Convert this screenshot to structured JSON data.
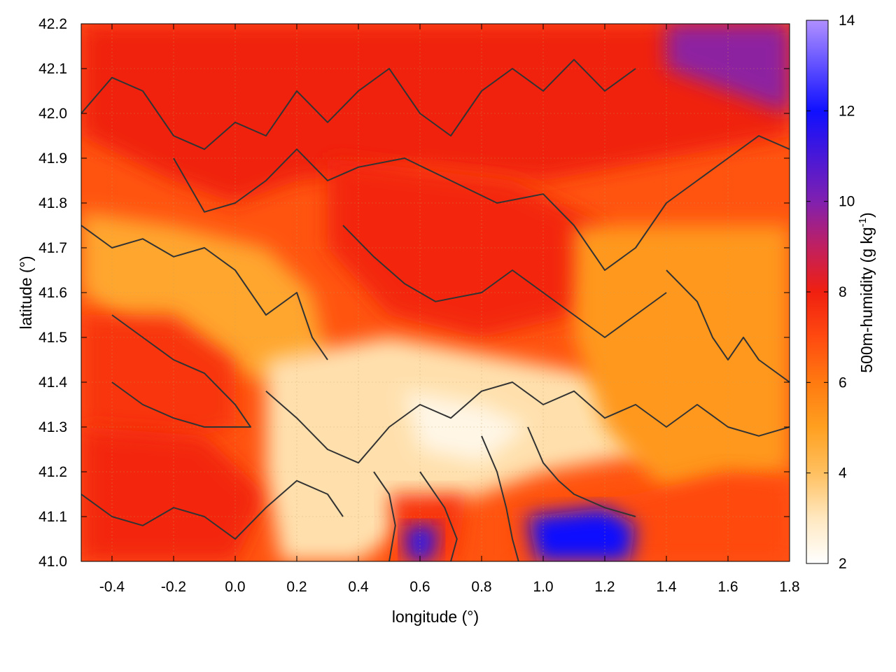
{
  "chart_data": {
    "type": "heatmap",
    "title": "",
    "xlabel": "longitude (°)",
    "ylabel": "latitude (°)",
    "colorbar_label_main": "500m-humidity (g kg",
    "colorbar_label_sup": "-1",
    "colorbar_label_end": ")",
    "xlim": [
      -0.5,
      1.8
    ],
    "ylim": [
      41.0,
      42.2
    ],
    "clim": [
      2,
      14
    ],
    "x_ticks": [
      "-0.4",
      "-0.2",
      "0.0",
      "0.2",
      "0.4",
      "0.6",
      "0.8",
      "1.0",
      "1.2",
      "1.4",
      "1.6",
      "1.8"
    ],
    "y_ticks": [
      "41.0",
      "41.1",
      "41.2",
      "41.3",
      "41.4",
      "41.5",
      "41.6",
      "41.7",
      "41.8",
      "41.9",
      "42.0",
      "42.1",
      "42.2"
    ],
    "colorbar_ticks": [
      "2",
      "4",
      "6",
      "8",
      "10",
      "12",
      "14"
    ],
    "grid": true,
    "legend": "colorbar-right",
    "colormap": [
      {
        "value": 2,
        "color": "#ffffff"
      },
      {
        "value": 3,
        "color": "#ffe8c0"
      },
      {
        "value": 4,
        "color": "#ffc060"
      },
      {
        "value": 5,
        "color": "#ffa020"
      },
      {
        "value": 6,
        "color": "#ff7a10"
      },
      {
        "value": 7,
        "color": "#ff4a10"
      },
      {
        "value": 8,
        "color": "#f02010"
      },
      {
        "value": 9,
        "color": "#c02060"
      },
      {
        "value": 10,
        "color": "#8020b0"
      },
      {
        "value": 12,
        "color": "#1010ff"
      },
      {
        "value": 14,
        "color": "#b090ff"
      }
    ],
    "regions": [
      {
        "name": "northern-moist-band",
        "value": 8.0,
        "polygon": [
          [
            -0.5,
            42.2
          ],
          [
            1.8,
            42.2
          ],
          [
            1.8,
            41.95
          ],
          [
            1.4,
            41.9
          ],
          [
            1.0,
            41.85
          ],
          [
            0.6,
            41.88
          ],
          [
            0.2,
            41.85
          ],
          [
            0.0,
            41.8
          ],
          [
            -0.2,
            41.85
          ],
          [
            -0.5,
            41.95
          ]
        ]
      },
      {
        "name": "northeast-purple",
        "value": 9.8,
        "polygon": [
          [
            1.4,
            42.2
          ],
          [
            1.8,
            42.2
          ],
          [
            1.8,
            42.0
          ],
          [
            1.6,
            42.05
          ],
          [
            1.4,
            42.1
          ]
        ]
      },
      {
        "name": "central-red-lobe",
        "value": 7.8,
        "polygon": [
          [
            0.3,
            41.9
          ],
          [
            0.9,
            41.85
          ],
          [
            1.2,
            41.75
          ],
          [
            1.1,
            41.55
          ],
          [
            0.8,
            41.5
          ],
          [
            0.5,
            41.55
          ],
          [
            0.3,
            41.7
          ]
        ]
      },
      {
        "name": "west-orange-tongue",
        "value": 4.8,
        "polygon": [
          [
            -0.5,
            41.78
          ],
          [
            -0.2,
            41.75
          ],
          [
            0.1,
            41.7
          ],
          [
            0.25,
            41.6
          ],
          [
            0.3,
            41.45
          ],
          [
            0.1,
            41.4
          ],
          [
            -0.3,
            41.5
          ],
          [
            -0.5,
            41.6
          ]
        ]
      },
      {
        "name": "west-red-patch",
        "value": 7.5,
        "polygon": [
          [
            -0.5,
            41.55
          ],
          [
            -0.2,
            41.55
          ],
          [
            0.0,
            41.45
          ],
          [
            0.0,
            41.3
          ],
          [
            -0.3,
            41.25
          ],
          [
            -0.5,
            41.3
          ]
        ]
      },
      {
        "name": "southwest-red",
        "value": 7.8,
        "polygon": [
          [
            -0.5,
            41.3
          ],
          [
            -0.1,
            41.28
          ],
          [
            0.1,
            41.15
          ],
          [
            0.0,
            41.0
          ],
          [
            -0.5,
            41.0
          ]
        ]
      },
      {
        "name": "central-dry-valley",
        "value": 3.2,
        "polygon": [
          [
            0.1,
            41.45
          ],
          [
            0.5,
            41.5
          ],
          [
            0.9,
            41.45
          ],
          [
            1.3,
            41.4
          ],
          [
            1.4,
            41.25
          ],
          [
            1.0,
            41.2
          ],
          [
            0.6,
            41.1
          ],
          [
            0.4,
            41.0
          ],
          [
            0.15,
            41.0
          ],
          [
            0.1,
            41.2
          ]
        ]
      },
      {
        "name": "driest-core",
        "value": 2.4,
        "polygon": [
          [
            0.55,
            41.38
          ],
          [
            0.8,
            41.35
          ],
          [
            0.95,
            41.3
          ],
          [
            0.8,
            41.22
          ],
          [
            0.6,
            41.25
          ]
        ]
      },
      {
        "name": "east-orange",
        "value": 5.2,
        "polygon": [
          [
            1.1,
            41.75
          ],
          [
            1.8,
            41.75
          ],
          [
            1.8,
            41.2
          ],
          [
            1.4,
            41.15
          ],
          [
            1.2,
            41.3
          ],
          [
            1.1,
            41.5
          ]
        ]
      },
      {
        "name": "south-red-valley",
        "value": 7.5,
        "polygon": [
          [
            0.5,
            41.15
          ],
          [
            0.75,
            41.15
          ],
          [
            0.72,
            41.0
          ],
          [
            0.52,
            41.0
          ]
        ]
      },
      {
        "name": "south-blue-core-west",
        "value": 11.5,
        "polygon": [
          [
            0.55,
            41.08
          ],
          [
            0.66,
            41.08
          ],
          [
            0.64,
            41.0
          ],
          [
            0.56,
            41.0
          ]
        ]
      },
      {
        "name": "south-red-east",
        "value": 7.0,
        "polygon": [
          [
            0.9,
            41.12
          ],
          [
            1.3,
            41.15
          ],
          [
            1.6,
            41.2
          ],
          [
            1.8,
            41.18
          ],
          [
            1.8,
            41.0
          ],
          [
            0.9,
            41.0
          ]
        ]
      },
      {
        "name": "south-blue-core-east",
        "value": 12.0,
        "polygon": [
          [
            0.95,
            41.1
          ],
          [
            1.2,
            41.12
          ],
          [
            1.3,
            41.08
          ],
          [
            1.28,
            41.0
          ],
          [
            0.98,
            41.0
          ]
        ]
      }
    ],
    "contours": [
      {
        "name": "contour-north",
        "points": [
          [
            -0.5,
            42.0
          ],
          [
            -0.4,
            42.08
          ],
          [
            -0.3,
            42.05
          ],
          [
            -0.2,
            41.95
          ],
          [
            -0.1,
            41.92
          ],
          [
            0.0,
            41.98
          ],
          [
            0.1,
            41.95
          ],
          [
            0.2,
            42.05
          ],
          [
            0.3,
            41.98
          ],
          [
            0.4,
            42.05
          ],
          [
            0.5,
            42.1
          ],
          [
            0.6,
            42.0
          ],
          [
            0.7,
            41.95
          ],
          [
            0.8,
            42.05
          ],
          [
            0.9,
            42.1
          ],
          [
            1.0,
            42.05
          ],
          [
            1.1,
            42.12
          ],
          [
            1.2,
            42.05
          ],
          [
            1.3,
            42.1
          ]
        ]
      },
      {
        "name": "contour-upper-mid",
        "points": [
          [
            -0.2,
            41.9
          ],
          [
            -0.1,
            41.78
          ],
          [
            0.0,
            41.8
          ],
          [
            0.1,
            41.85
          ],
          [
            0.2,
            41.92
          ],
          [
            0.3,
            41.85
          ],
          [
            0.4,
            41.88
          ],
          [
            0.55,
            41.9
          ],
          [
            0.7,
            41.85
          ],
          [
            0.85,
            41.8
          ],
          [
            1.0,
            41.82
          ],
          [
            1.1,
            41.75
          ],
          [
            1.2,
            41.65
          ],
          [
            1.3,
            41.7
          ],
          [
            1.4,
            41.8
          ],
          [
            1.5,
            41.85
          ],
          [
            1.6,
            41.9
          ],
          [
            1.7,
            41.95
          ],
          [
            1.8,
            41.92
          ]
        ]
      },
      {
        "name": "contour-central-lobe",
        "points": [
          [
            0.35,
            41.75
          ],
          [
            0.45,
            41.68
          ],
          [
            0.55,
            41.62
          ],
          [
            0.65,
            41.58
          ],
          [
            0.8,
            41.6
          ],
          [
            0.9,
            41.65
          ],
          [
            1.0,
            41.6
          ],
          [
            1.1,
            41.55
          ],
          [
            1.2,
            41.5
          ],
          [
            1.3,
            41.55
          ],
          [
            1.4,
            41.6
          ]
        ]
      },
      {
        "name": "contour-west-tongue",
        "points": [
          [
            -0.5,
            41.75
          ],
          [
            -0.4,
            41.7
          ],
          [
            -0.3,
            41.72
          ],
          [
            -0.2,
            41.68
          ],
          [
            -0.1,
            41.7
          ],
          [
            0.0,
            41.65
          ],
          [
            0.05,
            41.6
          ],
          [
            0.1,
            41.55
          ],
          [
            0.2,
            41.6
          ],
          [
            0.25,
            41.5
          ],
          [
            0.3,
            41.45
          ]
        ]
      },
      {
        "name": "contour-west-patch",
        "points": [
          [
            -0.4,
            41.55
          ],
          [
            -0.3,
            41.5
          ],
          [
            -0.2,
            41.45
          ],
          [
            -0.1,
            41.42
          ],
          [
            0.0,
            41.35
          ],
          [
            0.05,
            41.3
          ],
          [
            -0.1,
            41.3
          ],
          [
            -0.2,
            41.32
          ],
          [
            -0.3,
            41.35
          ],
          [
            -0.4,
            41.4
          ]
        ]
      },
      {
        "name": "contour-mid-south",
        "points": [
          [
            0.1,
            41.38
          ],
          [
            0.2,
            41.32
          ],
          [
            0.3,
            41.25
          ],
          [
            0.4,
            41.22
          ],
          [
            0.5,
            41.3
          ],
          [
            0.6,
            41.35
          ],
          [
            0.7,
            41.32
          ],
          [
            0.8,
            41.38
          ],
          [
            0.9,
            41.4
          ],
          [
            1.0,
            41.35
          ],
          [
            1.1,
            41.38
          ],
          [
            1.2,
            41.32
          ],
          [
            1.3,
            41.35
          ],
          [
            1.4,
            41.3
          ],
          [
            1.5,
            41.35
          ],
          [
            1.6,
            41.3
          ],
          [
            1.7,
            41.28
          ],
          [
            1.8,
            41.3
          ]
        ]
      },
      {
        "name": "contour-south-1",
        "points": [
          [
            0.45,
            41.2
          ],
          [
            0.5,
            41.15
          ],
          [
            0.52,
            41.08
          ],
          [
            0.5,
            41.0
          ]
        ]
      },
      {
        "name": "contour-south-2",
        "points": [
          [
            0.6,
            41.2
          ],
          [
            0.68,
            41.12
          ],
          [
            0.72,
            41.05
          ],
          [
            0.7,
            41.0
          ]
        ]
      },
      {
        "name": "contour-south-3",
        "points": [
          [
            0.8,
            41.28
          ],
          [
            0.85,
            41.2
          ],
          [
            0.88,
            41.12
          ],
          [
            0.9,
            41.05
          ],
          [
            0.92,
            41.0
          ]
        ]
      },
      {
        "name": "contour-south-4",
        "points": [
          [
            0.95,
            41.3
          ],
          [
            1.0,
            41.22
          ],
          [
            1.05,
            41.18
          ],
          [
            1.1,
            41.15
          ],
          [
            1.2,
            41.12
          ],
          [
            1.3,
            41.1
          ]
        ]
      },
      {
        "name": "contour-southwest",
        "points": [
          [
            -0.5,
            41.15
          ],
          [
            -0.4,
            41.1
          ],
          [
            -0.3,
            41.08
          ],
          [
            -0.2,
            41.12
          ],
          [
            -0.1,
            41.1
          ],
          [
            0.0,
            41.05
          ],
          [
            0.1,
            41.12
          ],
          [
            0.2,
            41.18
          ],
          [
            0.3,
            41.15
          ],
          [
            0.35,
            41.1
          ]
        ]
      },
      {
        "name": "contour-east",
        "points": [
          [
            1.4,
            41.65
          ],
          [
            1.5,
            41.58
          ],
          [
            1.55,
            41.5
          ],
          [
            1.6,
            41.45
          ],
          [
            1.65,
            41.5
          ],
          [
            1.7,
            41.45
          ],
          [
            1.8,
            41.4
          ]
        ]
      }
    ]
  }
}
